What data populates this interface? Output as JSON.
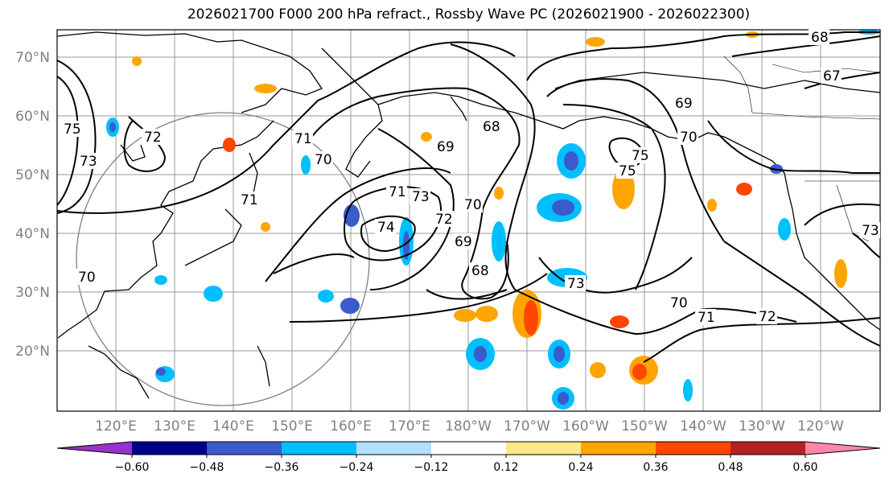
{
  "title": "2026021700 F000 200 hPa refract., Rossby Wave PC (2026021900 - 2026022300)",
  "lat_labels": [
    "70°N",
    "60°N",
    "50°N",
    "40°N",
    "30°N",
    "20°N"
  ],
  "lon_labels": [
    "120°E",
    "130°E",
    "140°E",
    "150°E",
    "160°E",
    "170°E",
    "180°W",
    "170°W",
    "160°W",
    "150°W",
    "140°W",
    "130°W",
    "120°W"
  ],
  "contour_labels": [
    "68",
    "67",
    "69",
    "70",
    "75",
    "73",
    "72",
    "71",
    "70",
    "69",
    "68",
    "75",
    "75",
    "71",
    "73",
    "71",
    "74",
    "72",
    "70",
    "69",
    "68",
    "73",
    "70",
    "71",
    "72",
    "70",
    "73"
  ],
  "colorbar": {
    "colors": [
      "#9932CC",
      "#00008B",
      "#3A5BCC",
      "#00BFFF",
      "#B0E0FF",
      "#FFFFFF",
      "#FFE88A",
      "#FFA500",
      "#FF4500",
      "#B22222",
      "#FF88AA"
    ],
    "ticks": [
      "−0.60",
      "−0.48",
      "−0.36",
      "−0.24",
      "−0.12",
      "0.12",
      "0.24",
      "0.36",
      "0.48",
      "0.60"
    ]
  }
}
